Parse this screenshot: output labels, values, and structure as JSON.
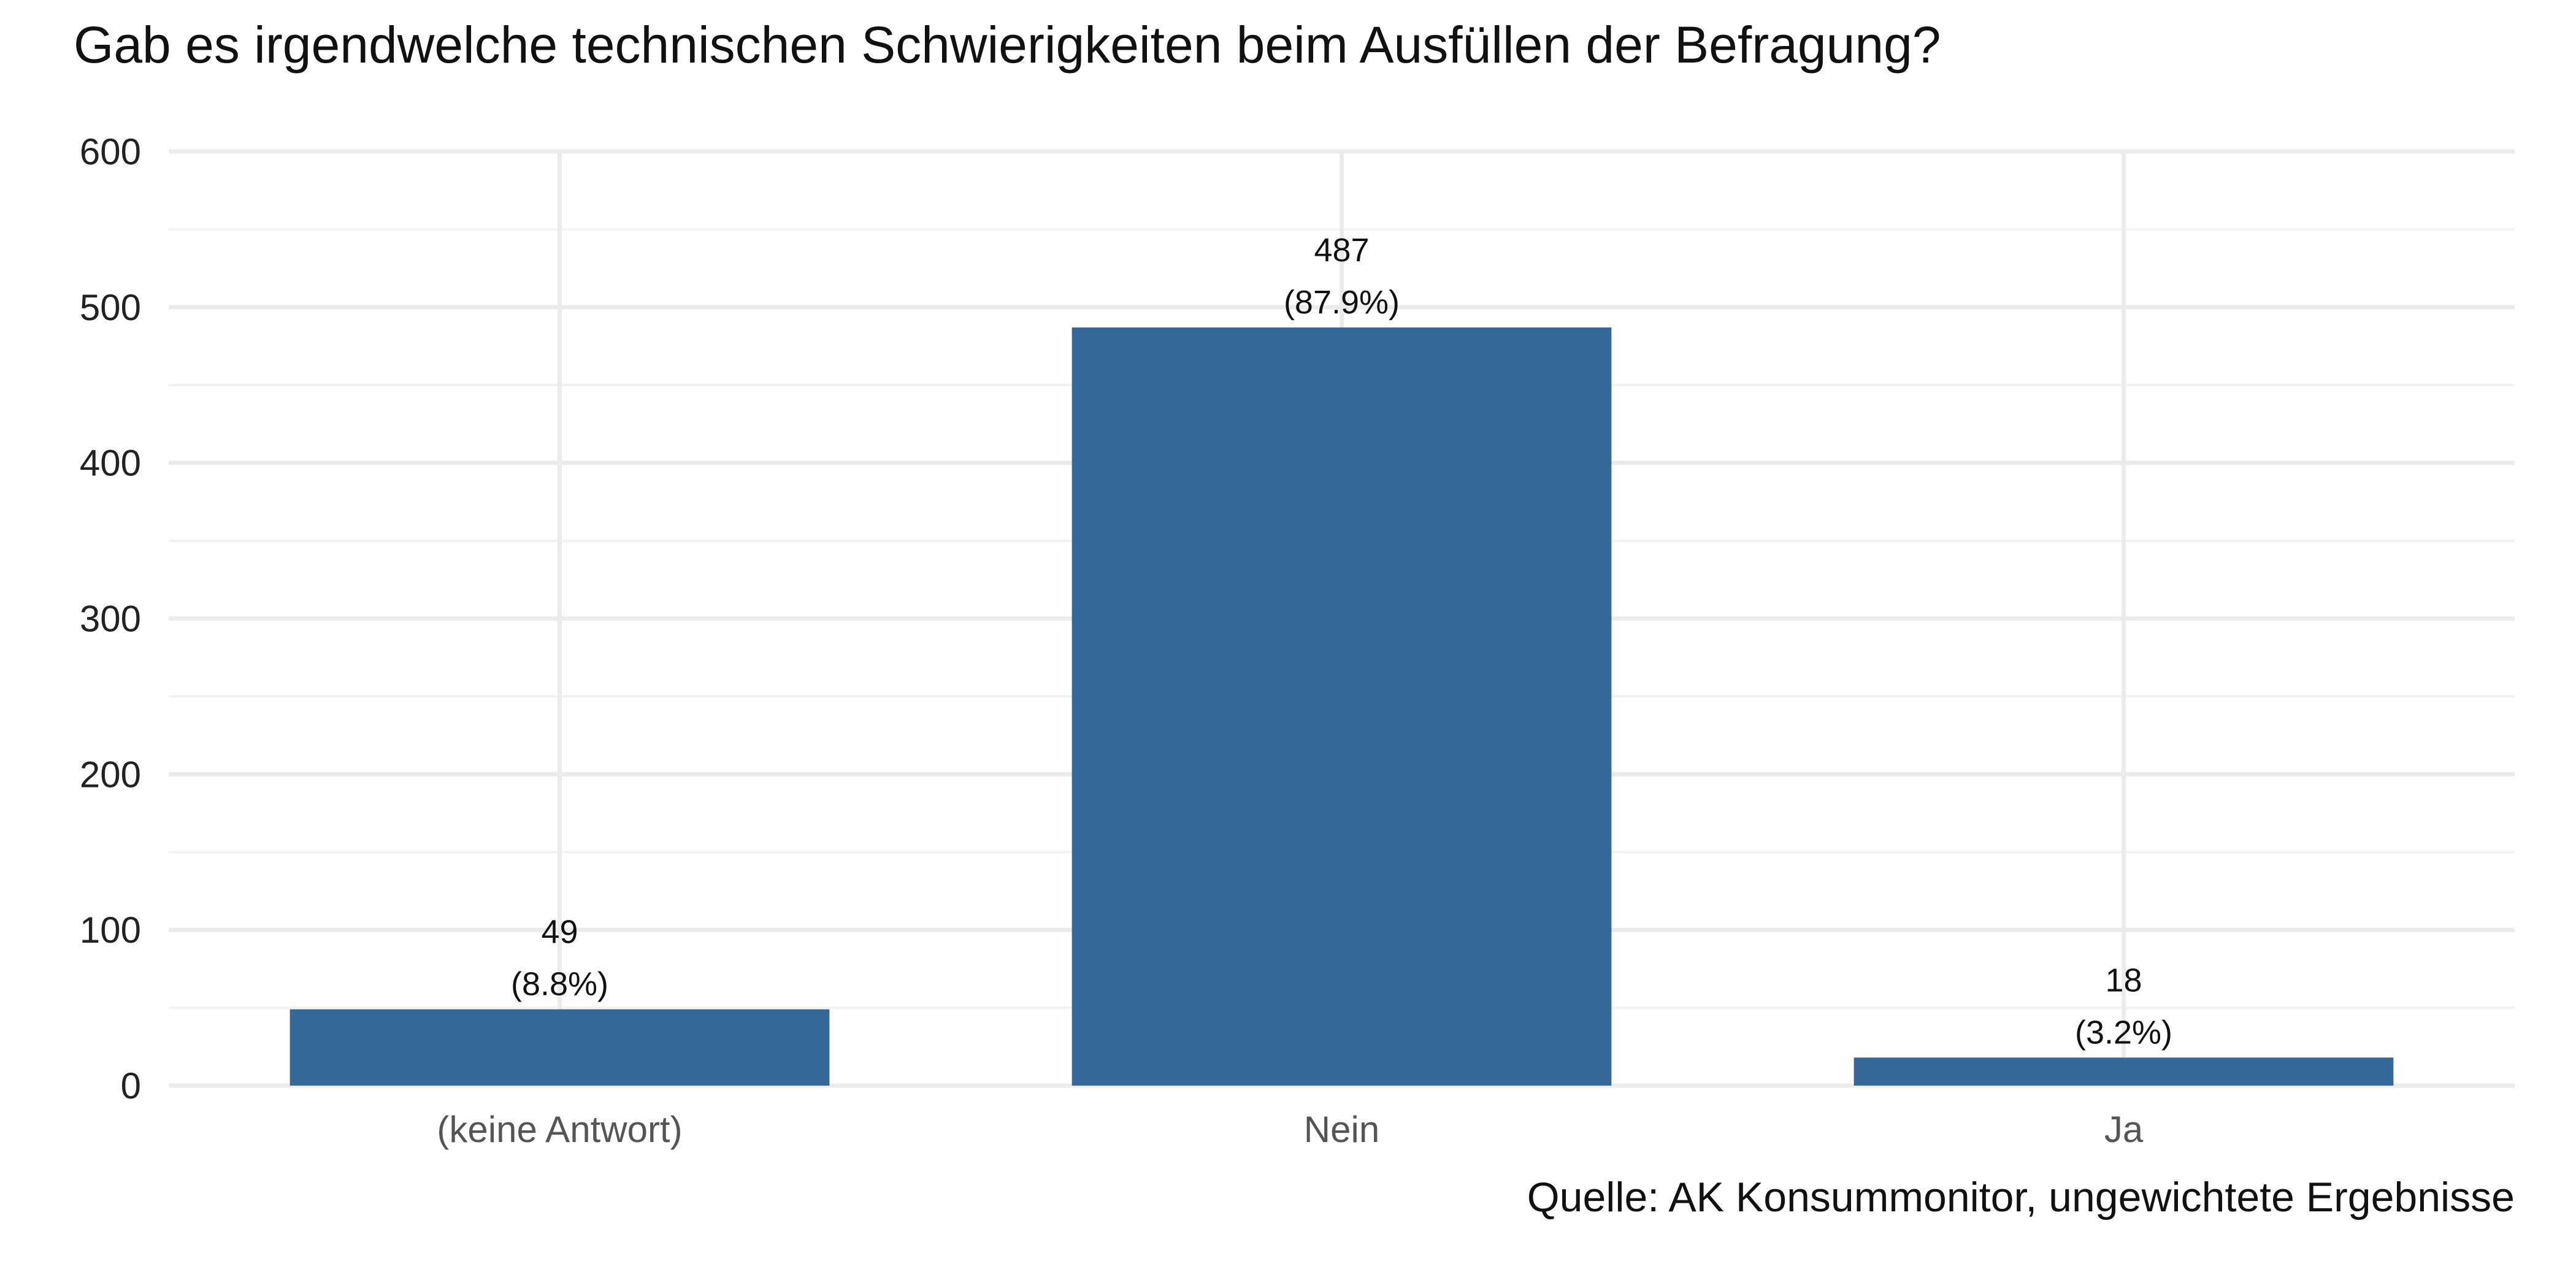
{
  "chart_data": {
    "type": "bar",
    "title": "Gab es irgendwelche technischen Schwierigkeiten beim Ausfüllen der Befragung?",
    "categories": [
      "(keine Antwort)",
      "Nein",
      "Ja"
    ],
    "values": [
      49,
      487,
      18
    ],
    "value_labels": [
      "49",
      "487",
      "18"
    ],
    "percent_labels": [
      "(8.8%)",
      "(87.9%)",
      "(3.2%)"
    ],
    "ylim": [
      0,
      600
    ],
    "yticks": [
      0,
      100,
      200,
      300,
      400,
      500,
      600
    ],
    "ytick_labels": [
      "0",
      "100",
      "200",
      "300",
      "400",
      "500",
      "600"
    ],
    "xlabel": "",
    "ylabel": "",
    "caption": "Quelle: AK Konsummonitor, ungewichtete Ergebnisse",
    "grid": true,
    "legend": "none",
    "colors": {
      "bar": "#346898",
      "grid_major": "#ebebeb",
      "grid_minor": "#f2f2f2"
    }
  }
}
